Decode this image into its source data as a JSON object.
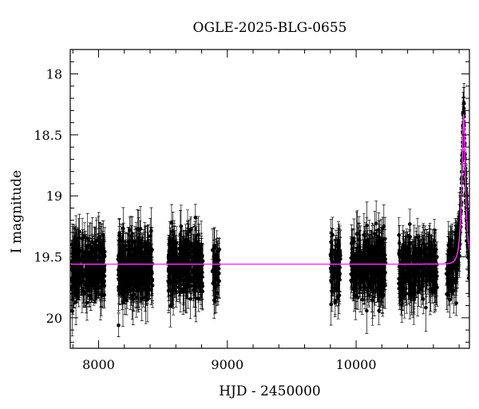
{
  "chart_data": {
    "type": "scatter",
    "title": "OGLE-2025-BLG-0655",
    "xlabel": "HJD - 2450000",
    "ylabel": "I magnitude",
    "xlim": [
      7780,
      10880
    ],
    "ylim": [
      20.25,
      17.8
    ],
    "y_inverted": true,
    "x_ticks": [
      8000,
      9000,
      10000
    ],
    "x_tick_labels": [
      "8000",
      "9000",
      "10000"
    ],
    "y_ticks": [
      18,
      18.5,
      19,
      19.5,
      20
    ],
    "y_tick_labels": [
      "18",
      "18.5",
      "19",
      "19.5",
      "20"
    ],
    "grid": false,
    "legend": "none",
    "colors": {
      "points": "#000000",
      "errorbars": "#000000",
      "model": "#ff33ff"
    },
    "series": [
      {
        "type": "scatter-errorbar",
        "baseline_mag": 19.58,
        "scatter_mag": 0.12,
        "typical_error": 0.15,
        "seasons": [
          {
            "start": 7790,
            "end": 8050,
            "n": 300
          },
          {
            "start": 8150,
            "end": 8420,
            "n": 320
          },
          {
            "start": 8540,
            "end": 8810,
            "n": 320
          },
          {
            "start": 8880,
            "end": 8940,
            "n": 40
          },
          {
            "start": 9800,
            "end": 9880,
            "n": 90
          },
          {
            "start": 9960,
            "end": 10230,
            "n": 300
          },
          {
            "start": 10330,
            "end": 10630,
            "n": 300
          },
          {
            "start": 10700,
            "end": 10880,
            "n": 220
          }
        ]
      },
      {
        "type": "line",
        "model": "paczynski",
        "baseline_mag": 19.56,
        "peak_mag": 18.33,
        "t0": 10835,
        "tE": 28
      }
    ]
  }
}
